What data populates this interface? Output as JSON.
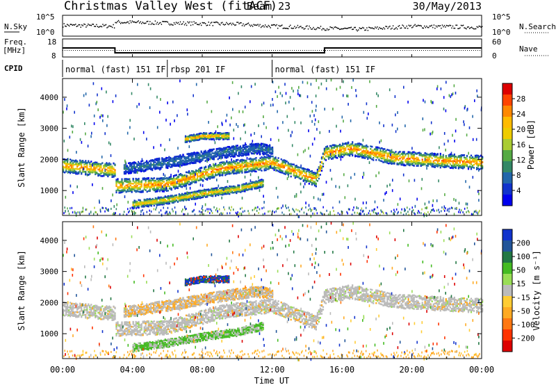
{
  "header": {
    "station": "Christmas Valley West (fitACF)",
    "beam": "Beam 23",
    "date": "30/May/2013"
  },
  "nsky_panel": {
    "left_label": "N.Sky",
    "left_ticks": [
      "10^5",
      "10^0"
    ],
    "right_label": "N.Search",
    "right_ticks": [
      "10^5",
      "10^0"
    ]
  },
  "freq_panel": {
    "left_label_1": "Freq.",
    "left_label_2": "[MHz]",
    "left_ticks": [
      "18",
      "8"
    ],
    "right_label": "Nave",
    "right_ticks": [
      "60",
      "0"
    ]
  },
  "cpid": {
    "label": "CPID",
    "segments": [
      {
        "text": "normal (fast) 151 IF",
        "start_hour": 0,
        "end_hour": 6
      },
      {
        "text": "rbsp 201 IF",
        "start_hour": 6,
        "end_hour": 12
      },
      {
        "text": "normal (fast) 151 IF",
        "start_hour": 12,
        "end_hour": 24
      }
    ]
  },
  "power_colorbar": {
    "label": "Power [dB]",
    "ticks": [
      "28",
      "24",
      "20",
      "16",
      "12",
      "8",
      "4"
    ],
    "colors": [
      "#dd0000",
      "#ff4400",
      "#ff8800",
      "#ffbb00",
      "#eecc00",
      "#aacc33",
      "#55aa44",
      "#338866",
      "#2266aa",
      "#1133cc",
      "#0000ee"
    ]
  },
  "velocity_colorbar": {
    "label": "Velocity [m s⁻¹]",
    "ticks": [
      "200",
      "100",
      "50",
      "15",
      "-15",
      "-50",
      "-100",
      "-200"
    ],
    "colors": [
      "#1133cc",
      "#225599",
      "#227744",
      "#44bb22",
      "#99dd55",
      "#bbbbbb",
      "#ffcc33",
      "#ffaa22",
      "#ff7711",
      "#ff3300",
      "#dd0000"
    ]
  },
  "x_axis": {
    "label": "Time UT",
    "ticks": [
      "00:00",
      "04:00",
      "08:00",
      "12:00",
      "16:00",
      "20:00",
      "00:00"
    ]
  },
  "chart_data": {
    "type": "heatmap",
    "x_unit": "hours UT",
    "xlim": [
      0,
      24
    ],
    "ylabel": "Slant Range [km]",
    "ylim": [
      200,
      4600
    ],
    "y_ticks": [
      1000,
      2000,
      3000,
      4000
    ],
    "nsky_series": [
      {
        "hours": [
          0,
          3,
          3.0,
          6,
          10,
          12,
          15,
          17,
          20,
          24
        ],
        "level": [
          0.55,
          0.5,
          0.7,
          0.65,
          0.6,
          0.5,
          0.4,
          0.35,
          0.5,
          0.45
        ]
      }
    ],
    "freq_series": [
      {
        "name": "Freq.",
        "hours": [
          0,
          3,
          3,
          15,
          15,
          24
        ],
        "mhz": [
          13,
          13,
          10.3,
          10.3,
          13,
          13
        ]
      },
      {
        "name": "Nave",
        "hours": [
          0,
          24
        ],
        "values": [
          22,
          22
        ]
      }
    ],
    "power_bands": [
      {
        "hours": [
          0,
          3,
          3,
          6,
          9,
          12,
          14.5,
          15,
          16.5,
          19,
          22,
          24
        ],
        "range_km": [
          1800,
          1650,
          1150,
          1200,
          1700,
          1900,
          1350,
          2200,
          2350,
          2050,
          1950,
          1900
        ],
        "width_km": 320,
        "peak_db": 24
      },
      {
        "hours": [
          4,
          6,
          8,
          10,
          11.5
        ],
        "range_km": [
          550,
          700,
          900,
          1050,
          1250
        ],
        "width_km": 180,
        "peak_db": 20
      },
      {
        "hours": [
          7,
          8,
          9.5
        ],
        "range_km": [
          2650,
          2750,
          2750
        ],
        "width_km": 150,
        "peak_db": 22
      },
      {
        "hours": [
          3.5,
          6,
          9,
          11,
          12
        ],
        "range_km": [
          1700,
          1900,
          2200,
          2350,
          2300
        ],
        "width_km": 250,
        "peak_db": 6
      }
    ],
    "velocity_summary": {
      "main_band_m_s": 0,
      "lower_band_m_s": 40,
      "upper_patch_m_s": 150,
      "ground_echo_m_s": -60
    }
  }
}
